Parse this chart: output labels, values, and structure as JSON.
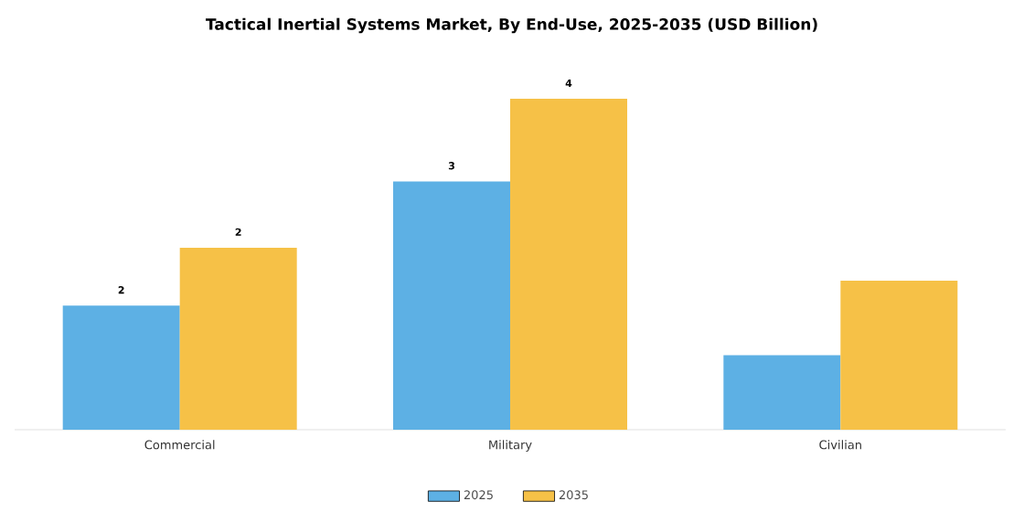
{
  "chart_data": {
    "type": "bar",
    "title": "Tactical Inertial Systems Market, By End-Use, 2025-2035 (USD Billion)",
    "categories": [
      "Commercial",
      "Military",
      "Civilian"
    ],
    "series": [
      {
        "name": "2025",
        "color": "#5db0e4",
        "values": [
          1.5,
          3,
          0.9
        ],
        "value_labels": [
          "2",
          "3",
          null
        ]
      },
      {
        "name": "2035",
        "color": "#f6c147",
        "values": [
          2.2,
          4,
          1.8
        ],
        "value_labels": [
          "2",
          "4",
          null
        ]
      }
    ],
    "legend": "bottom"
  }
}
